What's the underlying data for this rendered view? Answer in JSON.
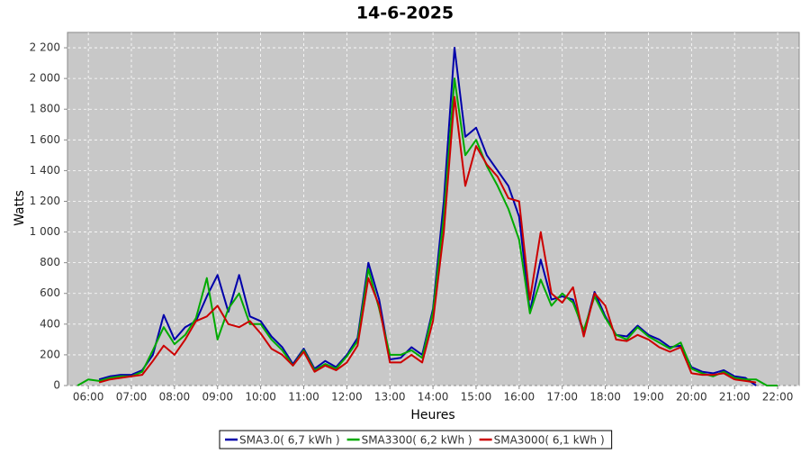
{
  "chart_data": {
    "type": "line",
    "title": "14-6-2025",
    "x_label": "Heures",
    "y_label": "Watts",
    "grid": true,
    "legend": "bottom",
    "x": [
      "05:45",
      "06:00",
      "06:15",
      "06:30",
      "06:45",
      "07:00",
      "07:15",
      "07:30",
      "07:45",
      "08:00",
      "08:15",
      "08:30",
      "08:45",
      "09:00",
      "09:15",
      "09:30",
      "09:45",
      "10:00",
      "10:15",
      "10:30",
      "10:45",
      "11:00",
      "11:15",
      "11:30",
      "11:45",
      "12:00",
      "12:15",
      "12:30",
      "12:45",
      "13:00",
      "13:15",
      "13:30",
      "13:45",
      "14:00",
      "14:15",
      "14:30",
      "14:45",
      "15:00",
      "15:15",
      "15:30",
      "15:45",
      "16:00",
      "16:15",
      "16:30",
      "16:45",
      "17:00",
      "17:15",
      "17:30",
      "17:45",
      "18:00",
      "18:15",
      "18:30",
      "18:45",
      "19:00",
      "19:15",
      "19:30",
      "19:45",
      "20:00",
      "20:15",
      "20:30",
      "20:45",
      "21:00",
      "21:15",
      "21:30",
      "21:45",
      "22:00"
    ],
    "series": [
      {
        "name": "SMA3.0( 6,7 kWh )",
        "color": "#0000aa",
        "values": [
          null,
          null,
          40,
          60,
          70,
          70,
          100,
          200,
          460,
          300,
          380,
          420,
          580,
          720,
          480,
          720,
          450,
          420,
          320,
          250,
          140,
          240,
          110,
          160,
          120,
          200,
          310,
          800,
          560,
          170,
          180,
          250,
          200,
          500,
          1200,
          2200,
          1620,
          1680,
          1500,
          1400,
          1300,
          1100,
          480,
          820,
          560,
          580,
          560,
          340,
          610,
          450,
          330,
          320,
          390,
          330,
          300,
          250,
          260,
          120,
          90,
          80,
          100,
          60,
          50,
          0,
          null,
          null
        ]
      },
      {
        "name": "SMA3300( 6,2 kWh )",
        "color": "#00aa00",
        "values": [
          0,
          40,
          30,
          50,
          60,
          60,
          90,
          230,
          380,
          270,
          330,
          440,
          700,
          300,
          500,
          600,
          400,
          400,
          300,
          230,
          130,
          230,
          100,
          140,
          110,
          190,
          290,
          760,
          500,
          200,
          200,
          230,
          180,
          480,
          1100,
          2000,
          1500,
          1600,
          1430,
          1300,
          1150,
          950,
          470,
          690,
          520,
          600,
          540,
          360,
          580,
          440,
          330,
          300,
          380,
          320,
          280,
          240,
          280,
          110,
          80,
          60,
          90,
          50,
          40,
          40,
          0,
          0
        ]
      },
      {
        "name": "SMA3000( 6,1 kWh )",
        "color": "#cc0000",
        "values": [
          null,
          null,
          20,
          40,
          50,
          60,
          70,
          160,
          260,
          200,
          300,
          420,
          450,
          520,
          400,
          380,
          420,
          340,
          240,
          200,
          130,
          220,
          90,
          130,
          100,
          150,
          260,
          700,
          520,
          150,
          150,
          200,
          150,
          420,
          1000,
          1880,
          1300,
          1560,
          1440,
          1360,
          1220,
          1200,
          560,
          1000,
          600,
          540,
          640,
          320,
          600,
          520,
          300,
          290,
          330,
          300,
          250,
          220,
          250,
          80,
          70,
          70,
          80,
          40,
          30,
          20,
          null,
          null
        ]
      }
    ],
    "xlim": [
      "05:31",
      "22:30"
    ],
    "xticks": [
      "06:00",
      "07:00",
      "08:00",
      "09:00",
      "10:00",
      "11:00",
      "12:00",
      "13:00",
      "14:00",
      "15:00",
      "16:00",
      "17:00",
      "18:00",
      "19:00",
      "20:00",
      "21:00",
      "22:00"
    ],
    "ylim": [
      0,
      2300
    ],
    "yticks": [
      0,
      200,
      400,
      600,
      800,
      {
        "value": 1000,
        "label": "1 000"
      },
      {
        "value": 1200,
        "label": "1 200"
      },
      {
        "value": 1400,
        "label": "1 400"
      },
      {
        "value": 1600,
        "label": "1 600"
      },
      {
        "value": 1800,
        "label": "1 800"
      },
      {
        "value": 2000,
        "label": "2 000"
      },
      {
        "value": 2200,
        "label": "2 200"
      }
    ]
  }
}
